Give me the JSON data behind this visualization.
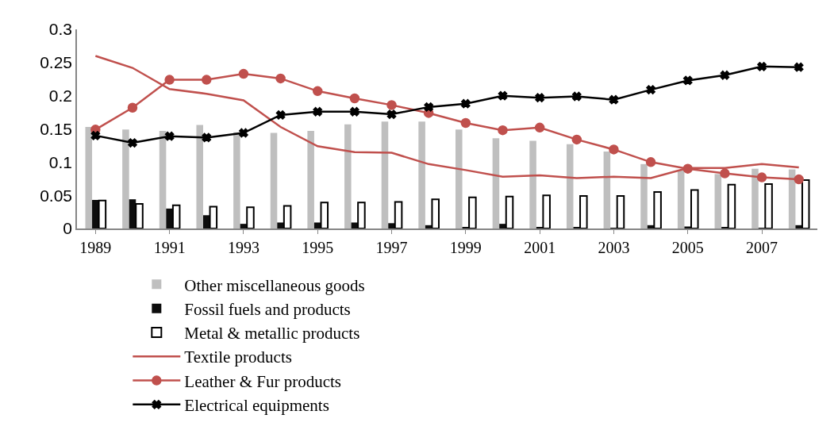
{
  "chart_data": {
    "type": "bar",
    "categories": [
      "1989",
      null,
      "1991",
      null,
      "1993",
      null,
      "1995",
      null,
      "1997",
      null,
      "1999",
      null,
      "2001",
      null,
      "2003",
      null,
      "2005",
      null,
      "2007",
      null
    ],
    "series": [
      {
        "name": "Other miscellaneous goods",
        "color": "#bfbfbf",
        "values": [
          0.153,
          0.149,
          0.147,
          0.156,
          0.145,
          0.144,
          0.147,
          0.157,
          0.161,
          0.161,
          0.149,
          0.136,
          0.132,
          0.127,
          0.116,
          0.097,
          0.088,
          0.082,
          0.09,
          0.089
        ]
      },
      {
        "name": "Fossil fuels and products",
        "color": "#0d0d0d",
        "values": [
          0.043,
          0.044,
          0.03,
          0.02,
          0.007,
          0.009,
          0.009,
          0.009,
          0.008,
          0.005,
          0.002,
          0.007,
          0.002,
          0.002,
          0.001,
          0.005,
          0.003,
          0.002,
          0.001,
          0.005
        ]
      },
      {
        "name": "Metal & metallic products",
        "color": "#ffffff",
        "values": [
          0.042,
          0.037,
          0.035,
          0.033,
          0.032,
          0.034,
          0.039,
          0.039,
          0.04,
          0.044,
          0.047,
          0.048,
          0.05,
          0.049,
          0.049,
          0.055,
          0.058,
          0.066,
          0.067,
          0.073
        ]
      },
      {
        "name": "Textile products",
        "type": "line",
        "color": "#c0504d",
        "marker": "none",
        "values": [
          0.26,
          0.242,
          0.21,
          0.203,
          0.193,
          0.153,
          0.124,
          0.115,
          0.114,
          0.097,
          0.088,
          0.078,
          0.08,
          0.076,
          0.078,
          0.076,
          0.091,
          0.091,
          0.097,
          0.092
        ]
      },
      {
        "name": "Leather & Fur products",
        "type": "line",
        "color": "#c0504d",
        "marker": "circle",
        "values": [
          0.149,
          0.182,
          0.224,
          0.224,
          0.233,
          0.226,
          0.207,
          0.196,
          0.186,
          0.174,
          0.159,
          0.148,
          0.152,
          0.134,
          0.119,
          0.1,
          0.09,
          0.083,
          0.077,
          0.074
        ]
      },
      {
        "name": "Electrical equipments",
        "type": "line",
        "color": "#000000",
        "marker": "cross",
        "values": [
          0.14,
          0.129,
          0.139,
          0.137,
          0.144,
          0.171,
          0.176,
          0.176,
          0.172,
          0.183,
          0.188,
          0.2,
          0.197,
          0.199,
          0.194,
          0.209,
          0.223,
          0.231,
          0.244,
          0.243
        ]
      }
    ],
    "ylim": [
      0,
      0.3
    ],
    "yticks": [
      0,
      0.05,
      0.1,
      0.15,
      0.2,
      0.25,
      0.3
    ],
    "grid": false,
    "legend": "bottom"
  }
}
